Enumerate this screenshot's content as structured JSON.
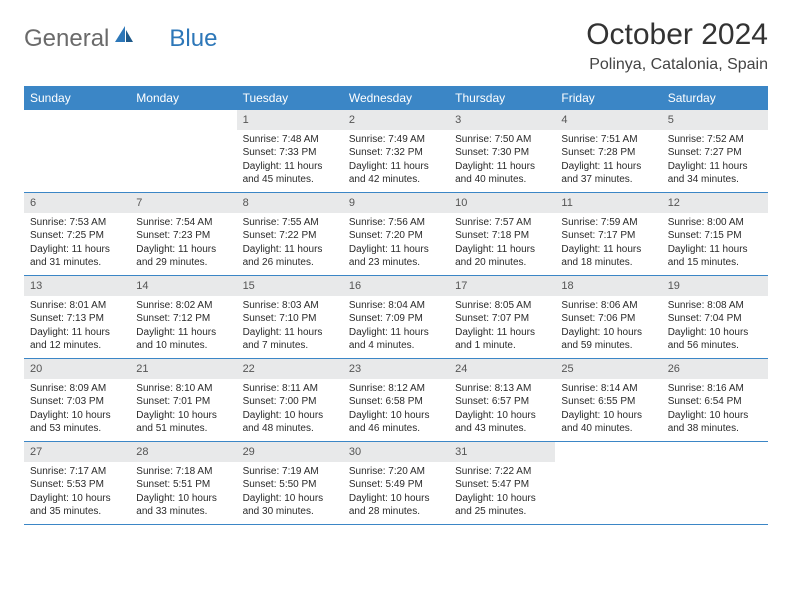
{
  "logo": {
    "text_general": "General",
    "text_blue": "Blue"
  },
  "header": {
    "title": "October 2024",
    "location": "Polinya, Catalonia, Spain"
  },
  "colors": {
    "header_bg": "#3b86c6",
    "daynum_bg": "#e8e9ea",
    "rule": "#3b86c6",
    "logo_blue": "#2d77b8"
  },
  "weekdays": [
    "Sunday",
    "Monday",
    "Tuesday",
    "Wednesday",
    "Thursday",
    "Friday",
    "Saturday"
  ],
  "weeks": [
    [
      null,
      null,
      {
        "n": "1",
        "sr": "Sunrise: 7:48 AM",
        "ss": "Sunset: 7:33 PM",
        "dl": "Daylight: 11 hours and 45 minutes."
      },
      {
        "n": "2",
        "sr": "Sunrise: 7:49 AM",
        "ss": "Sunset: 7:32 PM",
        "dl": "Daylight: 11 hours and 42 minutes."
      },
      {
        "n": "3",
        "sr": "Sunrise: 7:50 AM",
        "ss": "Sunset: 7:30 PM",
        "dl": "Daylight: 11 hours and 40 minutes."
      },
      {
        "n": "4",
        "sr": "Sunrise: 7:51 AM",
        "ss": "Sunset: 7:28 PM",
        "dl": "Daylight: 11 hours and 37 minutes."
      },
      {
        "n": "5",
        "sr": "Sunrise: 7:52 AM",
        "ss": "Sunset: 7:27 PM",
        "dl": "Daylight: 11 hours and 34 minutes."
      }
    ],
    [
      {
        "n": "6",
        "sr": "Sunrise: 7:53 AM",
        "ss": "Sunset: 7:25 PM",
        "dl": "Daylight: 11 hours and 31 minutes."
      },
      {
        "n": "7",
        "sr": "Sunrise: 7:54 AM",
        "ss": "Sunset: 7:23 PM",
        "dl": "Daylight: 11 hours and 29 minutes."
      },
      {
        "n": "8",
        "sr": "Sunrise: 7:55 AM",
        "ss": "Sunset: 7:22 PM",
        "dl": "Daylight: 11 hours and 26 minutes."
      },
      {
        "n": "9",
        "sr": "Sunrise: 7:56 AM",
        "ss": "Sunset: 7:20 PM",
        "dl": "Daylight: 11 hours and 23 minutes."
      },
      {
        "n": "10",
        "sr": "Sunrise: 7:57 AM",
        "ss": "Sunset: 7:18 PM",
        "dl": "Daylight: 11 hours and 20 minutes."
      },
      {
        "n": "11",
        "sr": "Sunrise: 7:59 AM",
        "ss": "Sunset: 7:17 PM",
        "dl": "Daylight: 11 hours and 18 minutes."
      },
      {
        "n": "12",
        "sr": "Sunrise: 8:00 AM",
        "ss": "Sunset: 7:15 PM",
        "dl": "Daylight: 11 hours and 15 minutes."
      }
    ],
    [
      {
        "n": "13",
        "sr": "Sunrise: 8:01 AM",
        "ss": "Sunset: 7:13 PM",
        "dl": "Daylight: 11 hours and 12 minutes."
      },
      {
        "n": "14",
        "sr": "Sunrise: 8:02 AM",
        "ss": "Sunset: 7:12 PM",
        "dl": "Daylight: 11 hours and 10 minutes."
      },
      {
        "n": "15",
        "sr": "Sunrise: 8:03 AM",
        "ss": "Sunset: 7:10 PM",
        "dl": "Daylight: 11 hours and 7 minutes."
      },
      {
        "n": "16",
        "sr": "Sunrise: 8:04 AM",
        "ss": "Sunset: 7:09 PM",
        "dl": "Daylight: 11 hours and 4 minutes."
      },
      {
        "n": "17",
        "sr": "Sunrise: 8:05 AM",
        "ss": "Sunset: 7:07 PM",
        "dl": "Daylight: 11 hours and 1 minute."
      },
      {
        "n": "18",
        "sr": "Sunrise: 8:06 AM",
        "ss": "Sunset: 7:06 PM",
        "dl": "Daylight: 10 hours and 59 minutes."
      },
      {
        "n": "19",
        "sr": "Sunrise: 8:08 AM",
        "ss": "Sunset: 7:04 PM",
        "dl": "Daylight: 10 hours and 56 minutes."
      }
    ],
    [
      {
        "n": "20",
        "sr": "Sunrise: 8:09 AM",
        "ss": "Sunset: 7:03 PM",
        "dl": "Daylight: 10 hours and 53 minutes."
      },
      {
        "n": "21",
        "sr": "Sunrise: 8:10 AM",
        "ss": "Sunset: 7:01 PM",
        "dl": "Daylight: 10 hours and 51 minutes."
      },
      {
        "n": "22",
        "sr": "Sunrise: 8:11 AM",
        "ss": "Sunset: 7:00 PM",
        "dl": "Daylight: 10 hours and 48 minutes."
      },
      {
        "n": "23",
        "sr": "Sunrise: 8:12 AM",
        "ss": "Sunset: 6:58 PM",
        "dl": "Daylight: 10 hours and 46 minutes."
      },
      {
        "n": "24",
        "sr": "Sunrise: 8:13 AM",
        "ss": "Sunset: 6:57 PM",
        "dl": "Daylight: 10 hours and 43 minutes."
      },
      {
        "n": "25",
        "sr": "Sunrise: 8:14 AM",
        "ss": "Sunset: 6:55 PM",
        "dl": "Daylight: 10 hours and 40 minutes."
      },
      {
        "n": "26",
        "sr": "Sunrise: 8:16 AM",
        "ss": "Sunset: 6:54 PM",
        "dl": "Daylight: 10 hours and 38 minutes."
      }
    ],
    [
      {
        "n": "27",
        "sr": "Sunrise: 7:17 AM",
        "ss": "Sunset: 5:53 PM",
        "dl": "Daylight: 10 hours and 35 minutes."
      },
      {
        "n": "28",
        "sr": "Sunrise: 7:18 AM",
        "ss": "Sunset: 5:51 PM",
        "dl": "Daylight: 10 hours and 33 minutes."
      },
      {
        "n": "29",
        "sr": "Sunrise: 7:19 AM",
        "ss": "Sunset: 5:50 PM",
        "dl": "Daylight: 10 hours and 30 minutes."
      },
      {
        "n": "30",
        "sr": "Sunrise: 7:20 AM",
        "ss": "Sunset: 5:49 PM",
        "dl": "Daylight: 10 hours and 28 minutes."
      },
      {
        "n": "31",
        "sr": "Sunrise: 7:22 AM",
        "ss": "Sunset: 5:47 PM",
        "dl": "Daylight: 10 hours and 25 minutes."
      },
      null,
      null
    ]
  ]
}
